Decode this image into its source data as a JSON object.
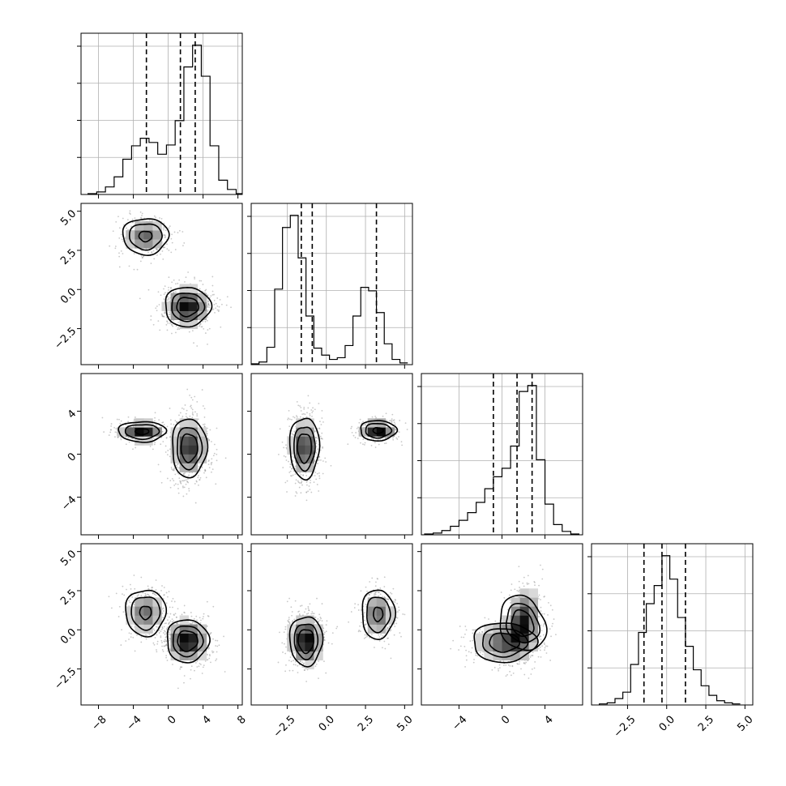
{
  "chart_data": {
    "type": "corner",
    "title": "",
    "n_params": 4,
    "axis_labels": [
      "",
      "",
      "",
      ""
    ],
    "ranges": [
      [
        -10,
        8.5
      ],
      [
        -4.8,
        5.5
      ],
      [
        -7.5,
        7.5
      ],
      [
        -4.8,
        5.5
      ]
    ],
    "ticks": [
      {
        "values": [
          -8,
          -4,
          0,
          4,
          8
        ],
        "labels": [
          "−8",
          "−4",
          "0",
          "4",
          "8"
        ]
      },
      {
        "values": [
          -2.5,
          0,
          2.5,
          5
        ],
        "labels": [
          "−2.5",
          "0.0",
          "2.5",
          "5.0"
        ]
      },
      {
        "values": [
          -4,
          0,
          4
        ],
        "labels": [
          "−4",
          "0",
          "4"
        ]
      },
      {
        "values": [
          -2.5,
          0,
          2.5,
          5
        ],
        "labels": [
          "−2.5",
          "0.0",
          "2.5",
          "5.0"
        ]
      }
    ],
    "histograms": [
      {
        "param": 0,
        "quantiles": [
          -2.5,
          1.4,
          3.1
        ],
        "bins": [
          -9.2,
          -8.2,
          -7.2,
          -6.2,
          -5.2,
          -4.2,
          -3.2,
          -2.2,
          -1.2,
          -0.2,
          0.8,
          1.8,
          2.8,
          3.8,
          4.8,
          5.8,
          6.8,
          7.8
        ],
        "counts": [
          1,
          3,
          9,
          21,
          42,
          58,
          67,
          62,
          48,
          59,
          88,
          152,
          178,
          141,
          58,
          17,
          6,
          1
        ]
      },
      {
        "param": 1,
        "quantiles": [
          -1.6,
          -0.9,
          3.2
        ],
        "bins": [
          -4.8,
          -4.3,
          -3.8,
          -3.3,
          -2.8,
          -2.3,
          -1.8,
          -1.3,
          -0.8,
          -0.3,
          0.2,
          0.7,
          1.2,
          1.7,
          2.2,
          2.7,
          3.2,
          3.7,
          4.2,
          4.7,
          5.2
        ],
        "counts": [
          1,
          3,
          20,
          87,
          158,
          172,
          123,
          56,
          19,
          11,
          6,
          8,
          22,
          56,
          89,
          85,
          60,
          24,
          6,
          2
        ]
      },
      {
        "param": 2,
        "quantiles": [
          -0.8,
          1.4,
          2.8
        ],
        "bins": [
          -7.2,
          -6.4,
          -5.6,
          -4.8,
          -4.0,
          -3.2,
          -2.4,
          -1.6,
          -0.8,
          0.0,
          0.8,
          1.6,
          2.4,
          3.2,
          4.0,
          4.8,
          5.6,
          6.4,
          7.2
        ],
        "counts": [
          1,
          2,
          5,
          10,
          17,
          26,
          38,
          54,
          68,
          78,
          104,
          168,
          175,
          88,
          36,
          12,
          4,
          1
        ]
      },
      {
        "param": 3,
        "quantiles": [
          -1.45,
          -0.3,
          1.2
        ],
        "bins": [
          -4.3,
          -3.8,
          -3.3,
          -2.8,
          -2.3,
          -1.8,
          -1.3,
          -0.8,
          -0.3,
          0.2,
          0.7,
          1.2,
          1.7,
          2.2,
          2.7,
          3.2,
          3.7,
          4.2,
          4.7
        ],
        "counts": [
          1,
          2,
          6,
          12,
          38,
          68,
          95,
          112,
          140,
          118,
          82,
          55,
          33,
          18,
          9,
          4,
          2,
          1
        ]
      }
    ],
    "joint_modes": [
      {
        "x": 0,
        "y": 1,
        "modes": [
          {
            "cx": -2.6,
            "cy": 3.4,
            "sx": 1.25,
            "sy": 0.55,
            "rho": 0.0,
            "w": 0.35
          },
          {
            "cx": 2.2,
            "cy": -1.1,
            "sx": 1.25,
            "sy": 0.6,
            "rho": 0.0,
            "w": 0.65
          }
        ]
      },
      {
        "x": 0,
        "y": 2,
        "modes": [
          {
            "cx": -3.0,
            "cy": 2.1,
            "sx": 1.3,
            "sy": 0.45,
            "rho": 0.0,
            "w": 0.35
          },
          {
            "cx": 2.4,
            "cy": 0.6,
            "sx": 0.95,
            "sy": 1.3,
            "rho": 0.0,
            "w": 0.65
          }
        ]
      },
      {
        "x": 1,
        "y": 2,
        "modes": [
          {
            "cx": -1.4,
            "cy": 0.6,
            "sx": 0.45,
            "sy": 1.35,
            "rho": 0.0,
            "w": 0.65
          },
          {
            "cx": 3.3,
            "cy": 2.2,
            "sx": 0.55,
            "sy": 0.45,
            "rho": 0.0,
            "w": 0.35
          }
        ]
      },
      {
        "x": 0,
        "y": 3,
        "modes": [
          {
            "cx": -2.6,
            "cy": 1.1,
            "sx": 1.1,
            "sy": 0.7,
            "rho": 0.0,
            "w": 0.35
          },
          {
            "cx": 2.2,
            "cy": -0.7,
            "sx": 1.15,
            "sy": 0.65,
            "rho": 0.0,
            "w": 0.65
          }
        ]
      },
      {
        "x": 1,
        "y": 3,
        "modes": [
          {
            "cx": -1.3,
            "cy": -0.7,
            "sx": 0.5,
            "sy": 0.75,
            "rho": 0.0,
            "w": 0.65
          },
          {
            "cx": 3.3,
            "cy": 1.0,
            "sx": 0.5,
            "sy": 0.75,
            "rho": 0.0,
            "w": 0.35
          }
        ]
      },
      {
        "x": 2,
        "y": 3,
        "modes": [
          {
            "cx": 1.9,
            "cy": 0.4,
            "sx": 0.8,
            "sy": 1.05,
            "rho": 0.25,
            "w": 0.6
          },
          {
            "cx": 0.2,
            "cy": -0.8,
            "sx": 1.4,
            "sy": 0.6,
            "rho": 0.0,
            "w": 0.4
          }
        ]
      }
    ]
  }
}
